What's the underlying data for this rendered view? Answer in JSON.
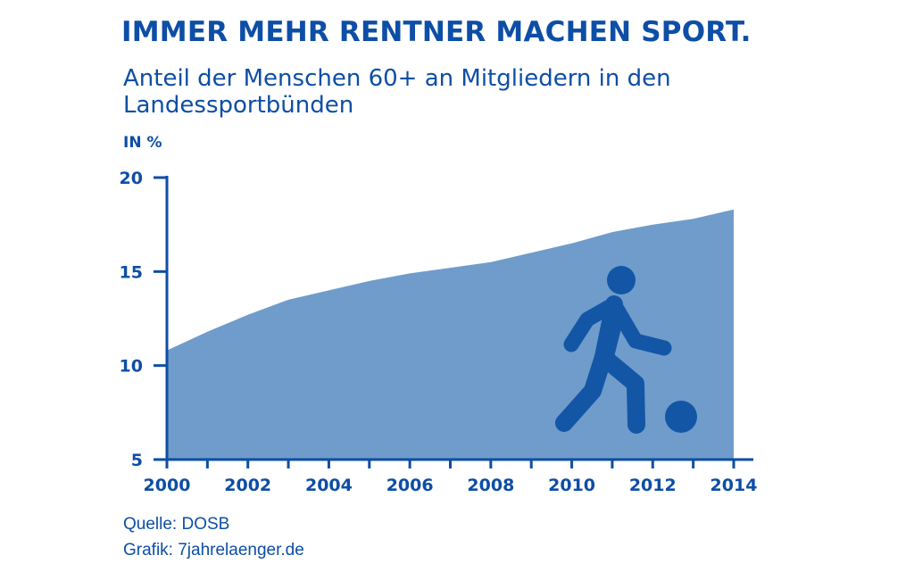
{
  "header": {
    "title": "IMMER MEHR RENTNER MACHEN SPORT.",
    "subtitle": "Anteil der Menschen 60+ an Mitgliedern in den Landessportbünden"
  },
  "footer": {
    "source": "Quelle: DOSB",
    "credit": "Grafik: 7jahrelaenger.de"
  },
  "colors": {
    "primary": "#0d4ea6",
    "area": "#6f9ccb",
    "icon": "#1356a6"
  },
  "chart_data": {
    "type": "area",
    "title": "IMMER MEHR RENTNER MACHEN SPORT.",
    "subtitle": "Anteil der Menschen 60+ an Mitgliedern in den Landessportbünden",
    "ylabel": "IN %",
    "xlabel": "",
    "x": [
      2000,
      2001,
      2002,
      2003,
      2004,
      2005,
      2006,
      2007,
      2008,
      2009,
      2010,
      2011,
      2012,
      2013,
      2014
    ],
    "values": [
      10.8,
      11.8,
      12.7,
      13.5,
      14.0,
      14.5,
      14.9,
      15.2,
      15.5,
      16.0,
      16.5,
      17.1,
      17.5,
      17.8,
      18.3
    ],
    "xlim": [
      2000,
      2014
    ],
    "ylim": [
      5,
      20
    ],
    "yticks": [
      5,
      10,
      15,
      20
    ],
    "xtick_labels": [
      "2000",
      "2002",
      "2004",
      "2006",
      "2008",
      "2010",
      "2012",
      "2014"
    ],
    "grid": false,
    "legend": "none",
    "decoration": "football-player-icon"
  }
}
